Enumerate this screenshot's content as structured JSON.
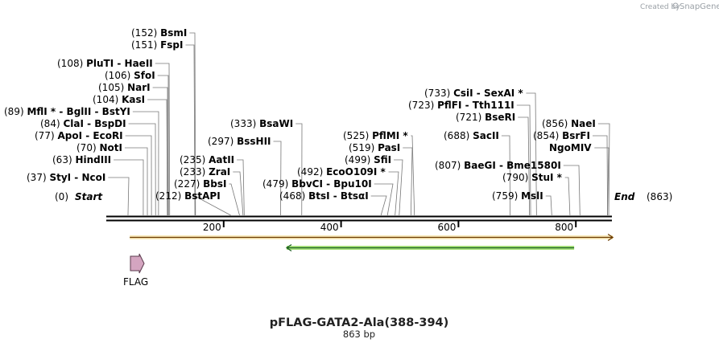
{
  "app": {
    "credit_prefix": "Created by",
    "credit_brand": "SnapGene"
  },
  "plasmid": {
    "name": "pFLAG-GATA2-Ala(388-394)",
    "length_label": "863 bp",
    "length": 863
  },
  "ends": {
    "start": {
      "pos": "(0)",
      "name": "Start"
    },
    "end": {
      "pos": "(863)",
      "name": "End"
    }
  },
  "axis_ticks": [
    "200",
    "400",
    "600",
    "800"
  ],
  "axis_tick_values": [
    200,
    400,
    600,
    800
  ],
  "features": [
    {
      "name": "FLAG",
      "type": "arrow",
      "start": 40,
      "end": 64,
      "color": "#d4a5c0"
    },
    {
      "name": "",
      "type": "bar",
      "start": 40,
      "end": 863,
      "color": "#f5a623",
      "fill": "#f7e9b9"
    },
    {
      "name": "",
      "type": "bar",
      "start": 310,
      "end": 830,
      "color": "#2e7d32",
      "fill": "#a6e07a"
    }
  ],
  "sites": [
    {
      "pos": "(37)",
      "name": "StyI",
      "name2": "NcoI",
      "site": 37,
      "star": false
    },
    {
      "pos": "(63)",
      "name": "HindIII",
      "name2": "",
      "site": 63,
      "star": false
    },
    {
      "pos": "(70)",
      "name": "NotI",
      "name2": "",
      "site": 70,
      "star": false
    },
    {
      "pos": "(77)",
      "name": "ApoI",
      "name2": "EcoRI",
      "site": 77,
      "star": false
    },
    {
      "pos": "(84)",
      "name": "ClaI",
      "name2": "BspDI",
      "site": 84,
      "star": false
    },
    {
      "pos": "(89)",
      "name": "MflI *",
      "name2": "BglII  - BstYI",
      "site": 89,
      "star": false
    },
    {
      "pos": "(104)",
      "name": "KasI",
      "name2": "",
      "site": 104,
      "star": false
    },
    {
      "pos": "(105)",
      "name": "NarI",
      "name2": "",
      "site": 105,
      "star": false
    },
    {
      "pos": "(106)",
      "name": "SfoI",
      "name2": "",
      "site": 106,
      "star": false
    },
    {
      "pos": "(108)",
      "name": "PluTI",
      "name2": "HaeII",
      "site": 108,
      "star": false
    },
    {
      "pos": "(151)",
      "name": "FspI",
      "name2": "",
      "site": 151,
      "star": false
    },
    {
      "pos": "(152)",
      "name": "BsmI",
      "name2": "",
      "site": 152,
      "star": false
    },
    {
      "pos": "(212)",
      "name": "BstAPI",
      "name2": "",
      "site": 212,
      "star": false
    },
    {
      "pos": "(227)",
      "name": "BbsI",
      "name2": "",
      "site": 227,
      "star": false
    },
    {
      "pos": "(233)",
      "name": "ZraI",
      "name2": "",
      "site": 233,
      "star": false
    },
    {
      "pos": "(235)",
      "name": "AatII",
      "name2": "",
      "site": 235,
      "star": false
    },
    {
      "pos": "(297)",
      "name": "BssHII",
      "name2": "",
      "site": 297,
      "star": false
    },
    {
      "pos": "(333)",
      "name": "BsaWI",
      "name2": "",
      "site": 333,
      "star": false
    },
    {
      "pos": "(468)",
      "name": "BtsI",
      "name2": "BtsαI",
      "site": 468,
      "star": false
    },
    {
      "pos": "(479)",
      "name": "BbvCI",
      "name2": "Bpu10I",
      "site": 479,
      "star": false
    },
    {
      "pos": "(492)",
      "name": "EcoO109I *",
      "name2": "",
      "site": 492,
      "star": false
    },
    {
      "pos": "(499)",
      "name": "SfiI",
      "name2": "",
      "site": 499,
      "star": false
    },
    {
      "pos": "(519)",
      "name": "PasI",
      "name2": "",
      "site": 519,
      "star": false
    },
    {
      "pos": "(525)",
      "name": "PflMI *",
      "name2": "",
      "site": 525,
      "star": false
    },
    {
      "pos": "(688)",
      "name": "SacII",
      "name2": "",
      "site": 688,
      "star": false
    },
    {
      "pos": "(721)",
      "name": "BseRI",
      "name2": "",
      "site": 721,
      "star": false
    },
    {
      "pos": "(723)",
      "name": "PflFI",
      "name2": "Tth111I",
      "site": 723,
      "star": false
    },
    {
      "pos": "(733)",
      "name": "CsiI",
      "name2": "SexAI *",
      "site": 733,
      "star": false
    },
    {
      "pos": "(759)",
      "name": "MslI",
      "name2": "",
      "site": 759,
      "star": false
    },
    {
      "pos": "(790)",
      "name": "StuI *",
      "name2": "",
      "site": 790,
      "star": false
    },
    {
      "pos": "(807)",
      "name": "BaeGI",
      "name2": "Bme1580I",
      "site": 807,
      "star": false
    },
    {
      "pos": "(854)",
      "name": "BsrFI",
      "name2": "",
      "site": 854,
      "star": false
    },
    {
      "pos": "",
      "name": "NgoMIV",
      "name2": "",
      "site": 854,
      "star": false
    },
    {
      "pos": "(856)",
      "name": "NaeI",
      "name2": "",
      "site": 856,
      "star": false
    }
  ]
}
